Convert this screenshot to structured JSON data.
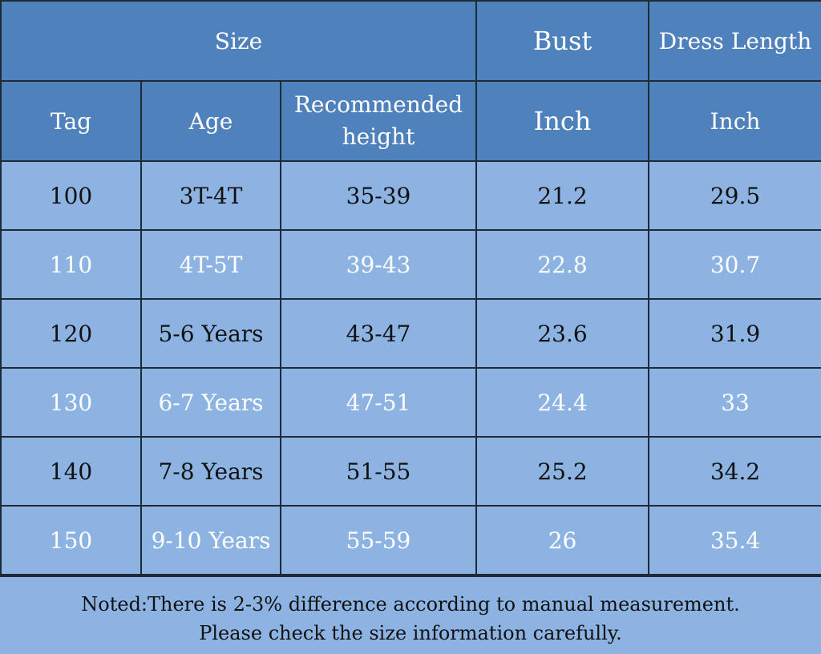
{
  "header": {
    "size": "Size",
    "bust": "Bust",
    "dress_length": "Dress Length",
    "tag": "Tag",
    "age": "Age",
    "recommended_height_1": "Recommended",
    "recommended_height_2": "height",
    "bust_unit": "Inch",
    "length_unit": "Inch"
  },
  "rows": [
    {
      "tag": "100",
      "age": "3T-4T",
      "height": "35-39",
      "bust": "21.2",
      "length": "29.5"
    },
    {
      "tag": "110",
      "age": "4T-5T",
      "height": "39-43",
      "bust": "22.8",
      "length": "30.7"
    },
    {
      "tag": "120",
      "age": "5-6 Years",
      "height": "43-47",
      "bust": "23.6",
      "length": "31.9"
    },
    {
      "tag": "130",
      "age": "6-7 Years",
      "height": "47-51",
      "bust": "24.4",
      "length": "33"
    },
    {
      "tag": "140",
      "age": "7-8 Years",
      "height": "51-55",
      "bust": "25.2",
      "length": "34.2"
    },
    {
      "tag": "150",
      "age": "9-10 Years",
      "height": "55-59",
      "bust": "26",
      "length": "35.4"
    }
  ],
  "note": {
    "line1": "Noted:There is 2-3% difference according to manual measurement.",
    "line2": "Please check the size information carefully."
  },
  "colors": {
    "header_bg": "#4f81bd",
    "row_bg": "#8db3e2",
    "border": "#1e2a36"
  }
}
